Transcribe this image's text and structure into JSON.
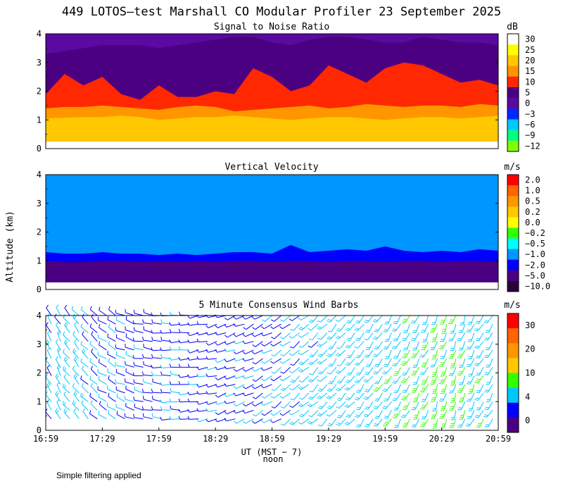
{
  "figure": {
    "title": "449 LOTOS—test Marshall CO Modular Profiler 23 September 2025",
    "xlabel": "UT  (MST − 7)",
    "xlabel_sub": "noon",
    "ylabel": "Altitude (km)",
    "footnote": "Simple filtering applied"
  },
  "chart_data": [
    {
      "type": "heatmap",
      "title": "Signal to Noise Ratio",
      "ylim": [
        0,
        4
      ],
      "yticks": [
        "0",
        "1",
        "2",
        "3",
        "4"
      ],
      "x_range": [
        "16:59",
        "20:59"
      ],
      "colorbar": {
        "unit": "dB",
        "labels": [
          "30",
          "25",
          "20",
          "15",
          "10",
          "5",
          "0",
          "−3",
          "−6",
          "−9",
          "−12"
        ],
        "colors": [
          "#ffffff",
          "#ffff00",
          "#ffc800",
          "#ff9600",
          "#ff2800",
          "#4b0082",
          "#5a0aa0",
          "#0028ff",
          "#00c8ff",
          "#00ff80",
          "#80ff00"
        ]
      },
      "bands": [
        {
          "snr_db": 20,
          "top_km": [
            1.05,
            1.08,
            1.1,
            1.1,
            1.15,
            1.1,
            1.0,
            1.05,
            1.1,
            1.1,
            1.15,
            1.1,
            1.05,
            1.0,
            1.05,
            1.1,
            1.1,
            1.05,
            1.0,
            1.05,
            1.1,
            1.1,
            1.05,
            1.1,
            1.15
          ],
          "color": "#ffc800"
        },
        {
          "snr_db": 15,
          "top_km": [
            1.4,
            1.45,
            1.45,
            1.5,
            1.45,
            1.4,
            1.35,
            1.45,
            1.5,
            1.45,
            1.3,
            1.35,
            1.4,
            1.45,
            1.5,
            1.4,
            1.45,
            1.55,
            1.5,
            1.45,
            1.5,
            1.5,
            1.45,
            1.55,
            1.5
          ],
          "color": "#ff9600"
        },
        {
          "snr_db": 10,
          "top_km": [
            1.9,
            2.6,
            2.2,
            2.5,
            1.9,
            1.7,
            2.2,
            1.8,
            1.8,
            2.0,
            1.9,
            2.8,
            2.5,
            2.0,
            2.2,
            2.9,
            2.6,
            2.3,
            2.8,
            3.0,
            2.9,
            2.6,
            2.3,
            2.4,
            2.2
          ],
          "color": "#ff2800"
        },
        {
          "snr_db": 5,
          "top_km": [
            3.3,
            3.4,
            3.5,
            3.6,
            3.6,
            3.6,
            3.5,
            3.6,
            3.7,
            3.8,
            3.9,
            3.9,
            3.7,
            3.6,
            3.8,
            3.9,
            3.9,
            3.8,
            3.7,
            3.7,
            3.9,
            3.8,
            3.7,
            3.7,
            3.6
          ],
          "color": "#4b0082"
        },
        {
          "snr_db": 0,
          "top_km": [
            4.05,
            4.05,
            4.05,
            4.05,
            4.05,
            4.05,
            4.05,
            4.05,
            4.05,
            4.05,
            4.05,
            4.05,
            4.05,
            4.05,
            4.05,
            4.05,
            4.05,
            4.05,
            4.05,
            4.05,
            4.05,
            4.05,
            4.05,
            4.05,
            4.05
          ],
          "color": "#5a0aa0"
        }
      ],
      "base_color": "#ffc800",
      "data_bottom_km": 0.25
    },
    {
      "type": "heatmap",
      "title": "Vertical Velocity",
      "ylim": [
        0,
        4
      ],
      "yticks": [
        "0",
        "1",
        "2",
        "3",
        "4"
      ],
      "x_range": [
        "16:59",
        "20:59"
      ],
      "colorbar": {
        "unit": "m/s",
        "labels": [
          "2.0",
          "1.0",
          "0.5",
          "0.2",
          "0.0",
          "−0.2",
          "−0.5",
          "−1.0",
          "−2.0",
          "−5.0",
          "−10.0"
        ],
        "colors": [
          "#ff0000",
          "#ff6400",
          "#ff9600",
          "#ffc800",
          "#ffff00",
          "#32ff00",
          "#00ffff",
          "#0096ff",
          "#0000ff",
          "#4b0082",
          "#28003c"
        ]
      },
      "bands": [
        {
          "velocity_ms": -5.0,
          "top_km": [
            1.0,
            0.95,
            0.95,
            1.0,
            1.0,
            0.95,
            1.0,
            0.95,
            1.0,
            0.95,
            1.0,
            1.0,
            0.95,
            1.0,
            1.0,
            0.95,
            1.0,
            1.0,
            0.95,
            1.0,
            1.0,
            0.95,
            1.0,
            1.0,
            0.95
          ],
          "color": "#4b0082"
        },
        {
          "velocity_ms": -2.0,
          "top_km": [
            1.3,
            1.25,
            1.25,
            1.3,
            1.25,
            1.25,
            1.2,
            1.25,
            1.2,
            1.25,
            1.3,
            1.3,
            1.25,
            1.55,
            1.3,
            1.35,
            1.4,
            1.35,
            1.5,
            1.35,
            1.3,
            1.35,
            1.3,
            1.4,
            1.35
          ],
          "color": "#0000ff"
        },
        {
          "velocity_ms": -1.0,
          "top_km": [
            4.0,
            4.0,
            4.0,
            4.0,
            4.0,
            4.0,
            4.0,
            4.0,
            4.0,
            4.0,
            4.0,
            4.0,
            4.0,
            4.0,
            4.0,
            4.0,
            4.0,
            4.0,
            4.0,
            4.0,
            4.0,
            4.0,
            4.0,
            4.0,
            4.0
          ],
          "color": "#0096ff"
        }
      ],
      "data_bottom_km": 0.25
    },
    {
      "type": "scatter",
      "title": "5 Minute Consensus Wind Barbs",
      "ylim": [
        0,
        4
      ],
      "yticks": [
        "0",
        "1",
        "2",
        "3",
        "4"
      ],
      "xticks": [
        "16:59",
        "17:29",
        "17:59",
        "18:29",
        "18:59",
        "19:29",
        "19:59",
        "20:29",
        "20:59"
      ],
      "colorbar": {
        "unit": "m/s",
        "labels": [
          "30",
          "20",
          "10",
          "4",
          "0"
        ],
        "colors": [
          "#ff0000",
          "#ff6400",
          "#ff9600",
          "#ffc800",
          "#32ff00",
          "#00c8ff",
          "#0000ff",
          "#4b0082"
        ]
      },
      "columns": 49,
      "heights_km": [
        0.4,
        0.7,
        1.0,
        1.3,
        1.6,
        1.9,
        2.2,
        2.5,
        2.8,
        3.1,
        3.4,
        3.7,
        4.0
      ],
      "speed_by_time_ms": [
        5,
        6,
        6,
        6,
        5,
        4,
        4,
        4,
        4,
        3,
        3,
        3,
        3,
        4,
        4,
        3,
        3,
        3,
        3,
        3,
        3,
        4,
        3,
        3,
        4,
        4,
        5,
        5,
        6,
        6,
        7,
        7,
        7,
        8,
        8,
        8,
        9,
        9,
        9,
        10,
        10,
        10,
        11,
        11,
        10,
        10,
        9,
        9,
        8
      ],
      "direction_by_time_deg": [
        330,
        330,
        320,
        320,
        315,
        310,
        300,
        300,
        290,
        290,
        280,
        280,
        275,
        270,
        270,
        265,
        260,
        260,
        255,
        250,
        250,
        250,
        245,
        240,
        240,
        235,
        230,
        230,
        230,
        225,
        225,
        220,
        220,
        220,
        215,
        215,
        215,
        210,
        210,
        210,
        205,
        205,
        200,
        200,
        200,
        200,
        205,
        210,
        210
      ]
    }
  ]
}
